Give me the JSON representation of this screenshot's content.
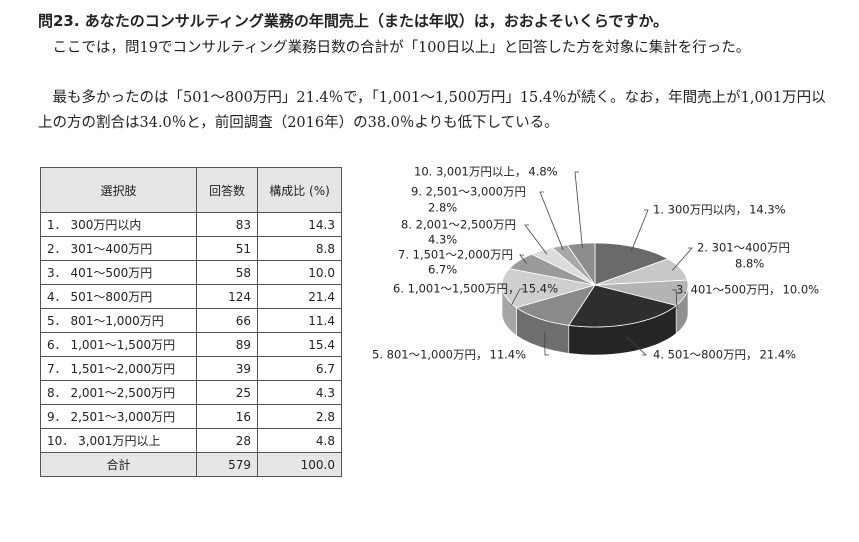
{
  "header": {
    "title": "問23. あなたのコンサルティング業務の年間売上（または年収）は，おおよそいくらですか。"
  },
  "paragraphs": [
    "ここでは，問19でコンサルティング業務日数の合計が「100日以上」と回答した方を対象に集計を行った。",
    "最も多かったのは「501～800万円」21.4％で，「1,001～1,500万円」15.4％が続く。なお，年間売上が1,001万円以上の方の割合は34.0％と，前回調査（2016年）の38.0％よりも低下している。"
  ],
  "table": {
    "header": [
      "選択肢",
      "回答数",
      "構成比 (%)"
    ],
    "rows": [
      [
        "1． 300万円以内",
        "83",
        "14.3"
      ],
      [
        "2． 301～400万円",
        "51",
        "8.8"
      ],
      [
        "3． 401～500万円",
        "58",
        "10.0"
      ],
      [
        "4． 501～800万円",
        "124",
        "21.4"
      ],
      [
        "5． 801～1,000万円",
        "66",
        "11.4"
      ],
      [
        "6． 1,001～1,500万円",
        "89",
        "15.4"
      ],
      [
        "7． 1,501～2,000万円",
        "39",
        "6.7"
      ],
      [
        "8． 2,001～2,500万円",
        "25",
        "4.3"
      ],
      [
        "9． 2,501～3,000万円",
        "16",
        "2.8"
      ],
      [
        "10． 3,001万円以上",
        "28",
        "4.8"
      ],
      [
        "合計",
        "579",
        "100.0"
      ]
    ]
  },
  "chart_data": {
    "type": "pie",
    "categories": [
      "1. 300万円以内，",
      "2. 301～400万円",
      "3. 401～500万円，",
      "4. 501～800万円，",
      "5. 801～1,000万円，",
      "6. 1,001～1,500万円，",
      "7. 1,501～2,000万円",
      "8. 2,001～2,500万円",
      "9. 2,501～3,000万円",
      "10. 3,001万円以上，"
    ],
    "values": [
      14.3,
      8.8,
      10.0,
      21.4,
      11.4,
      15.4,
      6.7,
      4.3,
      2.8,
      4.8
    ],
    "value_labels": [
      "14.3%",
      "8.8%",
      "10.0%",
      "21.4%",
      "11.4%",
      "15.4%",
      "6.7%",
      "4.3%",
      "2.8%",
      "4.8%"
    ],
    "colors": [
      "#6a6a6a",
      "#c8c8c8",
      "#b4b4b4",
      "#2e2e2e",
      "#8a8a8a",
      "#cfcfcf",
      "#9a9a9a",
      "#dcdcdc",
      "#a8a8a8",
      "#8c8c8c"
    ]
  }
}
